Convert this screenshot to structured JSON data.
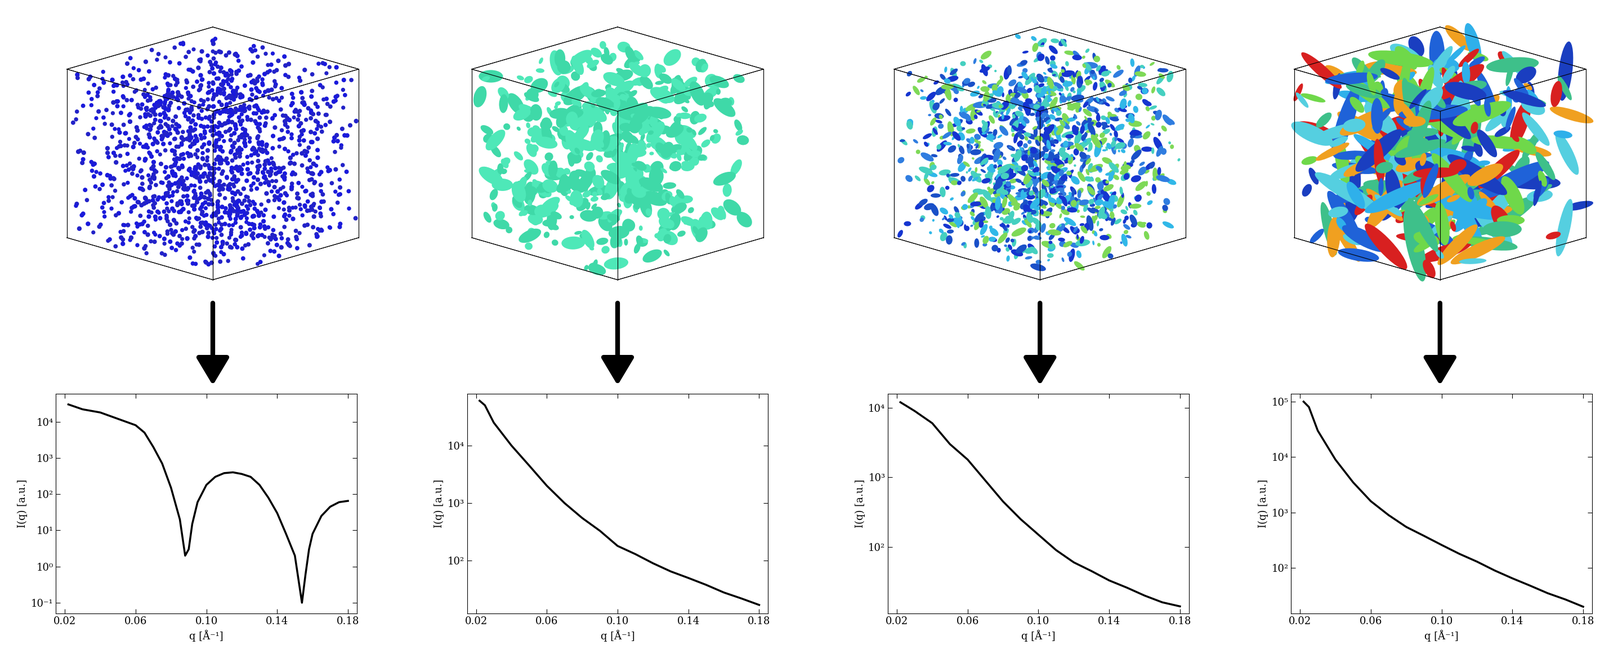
{
  "chart_data": [
    {
      "type": "line",
      "log": "y",
      "xlabel": "q [Å⁻¹]",
      "ylabel": "I(q) [a.u.]",
      "color": "#000000",
      "x": [
        0.022,
        0.03,
        0.04,
        0.05,
        0.06,
        0.065,
        0.07,
        0.075,
        0.08,
        0.085,
        0.088,
        0.09,
        0.092,
        0.095,
        0.1,
        0.105,
        0.11,
        0.115,
        0.12,
        0.125,
        0.13,
        0.135,
        0.14,
        0.145,
        0.15,
        0.154,
        0.156,
        0.158,
        0.16,
        0.165,
        0.17,
        0.175,
        0.18
      ],
      "values": [
        30000,
        22000,
        18000,
        12000,
        8000,
        5000,
        2000,
        700,
        150,
        20,
        2,
        3,
        15,
        60,
        180,
        300,
        380,
        400,
        360,
        300,
        180,
        80,
        30,
        8,
        2,
        0.1,
        0.6,
        3,
        8,
        25,
        45,
        60,
        65
      ],
      "xlim": [
        0.015,
        0.185
      ],
      "ylim": [
        0.05,
        60000
      ],
      "xticks": [
        0.02,
        0.06,
        {
          "value": 0.1,
          "label": "0.10"
        },
        0.14,
        0.18
      ],
      "yticks": [
        {
          "value": 0.1,
          "label": "10⁻¹"
        },
        {
          "value": 1,
          "label": "10⁰"
        },
        {
          "value": 10,
          "label": "10¹"
        },
        {
          "value": 100,
          "label": "10²"
        },
        {
          "value": 1000,
          "label": "10³"
        },
        {
          "value": 10000,
          "label": "10⁴"
        }
      ]
    },
    {
      "type": "line",
      "log": "y",
      "xlabel": "q [Å⁻¹]",
      "ylabel": "I(q) [a.u.]",
      "color": "#000000",
      "x": [
        0.022,
        0.025,
        0.03,
        0.04,
        0.05,
        0.06,
        0.07,
        0.08,
        0.09,
        0.1,
        0.11,
        0.12,
        0.13,
        0.14,
        0.15,
        0.16,
        0.17,
        0.18
      ],
      "values": [
        60000,
        50000,
        25000,
        10000,
        4500,
        2000,
        1000,
        550,
        330,
        180,
        130,
        90,
        65,
        50,
        38,
        28,
        22,
        17
      ],
      "xlim": [
        0.015,
        0.185
      ],
      "ylim": [
        12,
        80000
      ],
      "xticks": [
        0.02,
        0.06,
        {
          "value": 0.1,
          "label": "0.10"
        },
        0.14,
        0.18
      ],
      "yticks": [
        {
          "value": 100,
          "label": "10²"
        },
        {
          "value": 1000,
          "label": "10³"
        },
        {
          "value": 10000,
          "label": "10⁴"
        }
      ]
    },
    {
      "type": "line",
      "log": "y",
      "xlabel": "q [Å⁻¹]",
      "ylabel": "I(q) [a.u.]",
      "color": "#000000",
      "x": [
        0.022,
        0.03,
        0.04,
        0.05,
        0.06,
        0.07,
        0.08,
        0.09,
        0.1,
        0.11,
        0.12,
        0.13,
        0.14,
        0.15,
        0.16,
        0.17,
        0.18
      ],
      "values": [
        12000,
        9000,
        6000,
        3000,
        1800,
        900,
        450,
        250,
        150,
        90,
        60,
        45,
        33,
        26,
        20,
        16,
        14
      ],
      "xlim": [
        0.015,
        0.185
      ],
      "ylim": [
        11,
        16000
      ],
      "xticks": [
        0.02,
        0.06,
        {
          "value": 0.1,
          "label": "0.10"
        },
        0.14,
        0.18
      ],
      "yticks": [
        {
          "value": 100,
          "label": "10²"
        },
        {
          "value": 1000,
          "label": "10³"
        },
        {
          "value": 10000,
          "label": "10⁴"
        }
      ]
    },
    {
      "type": "line",
      "log": "y",
      "xlabel": "q [Å⁻¹]",
      "ylabel": "I(q) [a.u.]",
      "color": "#000000",
      "x": [
        0.022,
        0.025,
        0.03,
        0.04,
        0.05,
        0.06,
        0.07,
        0.08,
        0.09,
        0.1,
        0.11,
        0.12,
        0.13,
        0.14,
        0.15,
        0.16,
        0.17,
        0.18
      ],
      "values": [
        100000,
        80000,
        30000,
        9000,
        3500,
        1600,
        900,
        550,
        380,
        260,
        180,
        130,
        90,
        65,
        48,
        35,
        27,
        20
      ],
      "xlim": [
        0.015,
        0.185
      ],
      "ylim": [
        15,
        140000
      ],
      "xticks": [
        0.02,
        0.06,
        {
          "value": 0.1,
          "label": "0.10"
        },
        0.14,
        0.18
      ],
      "yticks": [
        {
          "value": 100,
          "label": "10²"
        },
        {
          "value": 1000,
          "label": "10³"
        },
        {
          "value": 10000,
          "label": "10⁴"
        },
        {
          "value": 100000,
          "label": "10⁵"
        }
      ]
    }
  ]
}
